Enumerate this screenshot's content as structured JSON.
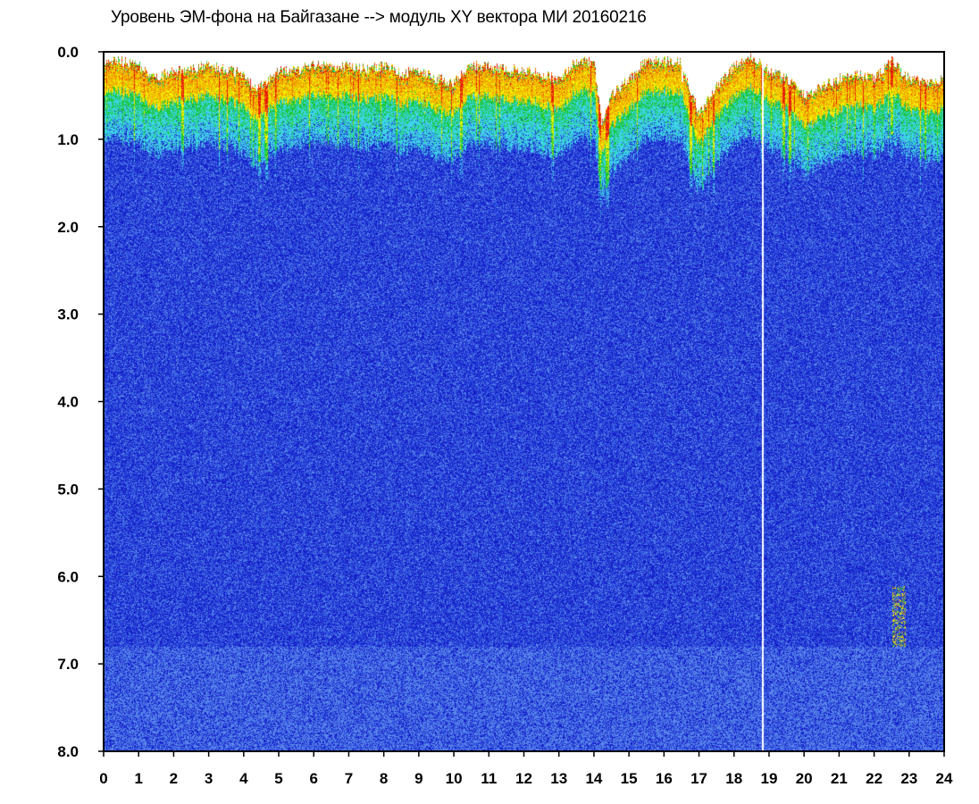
{
  "title": "Уровень ЭМ-фона на Байгазане   -->  модуль XY вектора МИ   20160216",
  "colors": {
    "background": "#ffffff",
    "frame": "#000000",
    "scale": [
      "#1420c8",
      "#2f52e0",
      "#5a86ea",
      "#3cd4e6",
      "#19c832",
      "#f2f000",
      "#f0a000",
      "#e81e0a"
    ]
  },
  "chart_data": {
    "type": "heatmap",
    "title": "Уровень ЭМ-фона на Байгазане   -->  модуль XY вектора МИ   20160216",
    "xlabel": "",
    "ylabel": "",
    "xlim": [
      0,
      24
    ],
    "ylim": [
      8.0,
      0.0
    ],
    "y_inverted": true,
    "x_ticks": [
      "0",
      "1",
      "2",
      "3",
      "4",
      "5",
      "6",
      "7",
      "8",
      "9",
      "10",
      "11",
      "12",
      "13",
      "14",
      "15",
      "16",
      "17",
      "18",
      "19",
      "20",
      "21",
      "22",
      "23",
      "24"
    ],
    "y_ticks": [
      "0.0",
      "1.0",
      "2.0",
      "3.0",
      "4.0",
      "5.0",
      "6.0",
      "7.0",
      "8.0"
    ],
    "x_tick_values": [
      0,
      1,
      2,
      3,
      4,
      5,
      6,
      7,
      8,
      9,
      10,
      11,
      12,
      13,
      14,
      15,
      16,
      17,
      18,
      19,
      20,
      21,
      22,
      23,
      24
    ],
    "y_tick_values": [
      0,
      1,
      2,
      3,
      4,
      5,
      6,
      7,
      8
    ],
    "grid": false,
    "legend": "none",
    "upper_envelope": {
      "x": [
        0.0,
        0.5,
        1.0,
        1.5,
        2.0,
        2.5,
        3.0,
        3.5,
        4.0,
        4.3,
        4.6,
        5.0,
        5.5,
        6.0,
        6.5,
        7.0,
        7.5,
        8.0,
        8.5,
        9.0,
        9.5,
        10.0,
        10.5,
        11.0,
        11.5,
        12.0,
        12.5,
        13.0,
        13.5,
        14.0,
        14.2,
        14.5,
        15.0,
        15.5,
        16.0,
        16.5,
        16.8,
        17.0,
        17.5,
        18.0,
        18.5,
        19.0,
        19.5,
        20.0,
        20.5,
        21.0,
        21.5,
        22.0,
        22.5,
        23.0,
        23.5,
        24.0
      ],
      "y": [
        0.1,
        0.1,
        0.15,
        0.3,
        0.2,
        0.2,
        0.15,
        0.2,
        0.25,
        0.4,
        0.35,
        0.2,
        0.2,
        0.15,
        0.15,
        0.15,
        0.2,
        0.15,
        0.25,
        0.2,
        0.3,
        0.35,
        0.15,
        0.15,
        0.2,
        0.2,
        0.25,
        0.3,
        0.1,
        0.1,
        0.8,
        0.5,
        0.3,
        0.1,
        0.1,
        0.1,
        0.5,
        0.7,
        0.4,
        0.15,
        0.05,
        0.2,
        0.3,
        0.5,
        0.4,
        0.3,
        0.25,
        0.3,
        0.1,
        0.3,
        0.35,
        0.3
      ]
    },
    "bright_vertical_lines_x": [
      2.25,
      4.45,
      4.65,
      10.2,
      12.8,
      14.15,
      14.35,
      16.75,
      18.8,
      19.4,
      19.6,
      22.5
    ],
    "anomaly": {
      "x": [
        22.5,
        22.9
      ],
      "y": [
        6.1,
        6.8
      ]
    }
  }
}
